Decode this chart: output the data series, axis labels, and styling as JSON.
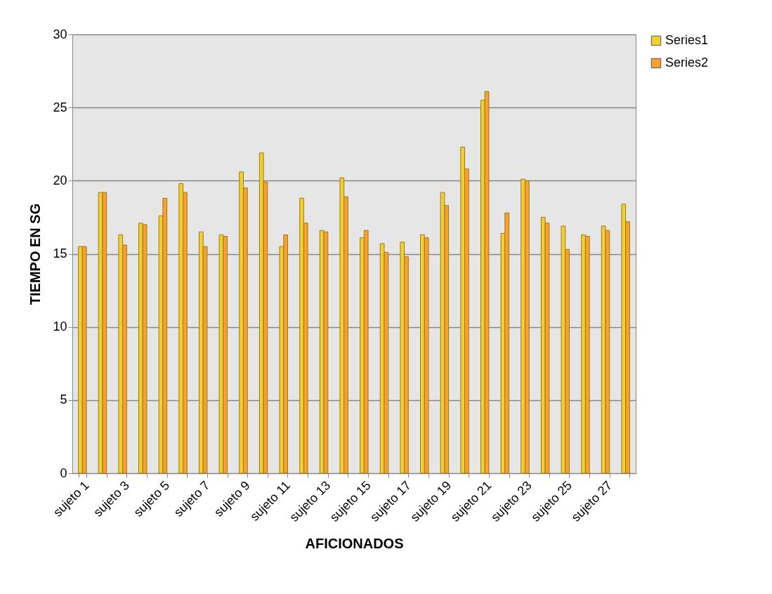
{
  "chart_data": {
    "type": "bar",
    "xlabel": "AFICIONADOS",
    "ylabel": "TIEMPO EN SG",
    "categories": [
      "sujeto 1",
      null,
      "sujeto 3",
      null,
      "sujeto 5",
      null,
      "sujeto 7",
      null,
      "sujeto 9",
      null,
      "sujeto 11",
      null,
      "sujeto 13",
      null,
      "sujeto 15",
      null,
      "sujeto 17",
      null,
      "sujeto 19",
      null,
      "sujeto 21",
      null,
      "sujeto 23",
      null,
      "sujeto 25",
      null,
      "sujeto 27",
      null
    ],
    "series": [
      {
        "name": "Series1",
        "color": "#f0d030",
        "values": [
          15.5,
          19.2,
          16.3,
          17.1,
          17.6,
          19.8,
          16.5,
          16.3,
          20.6,
          21.9,
          15.5,
          18.8,
          16.6,
          20.2,
          16.1,
          15.7,
          15.8,
          16.3,
          19.2,
          22.3,
          25.5,
          16.4,
          20.1,
          17.5,
          16.9,
          16.3,
          16.9,
          18.4
        ]
      },
      {
        "name": "Series2",
        "color": "#f8a030",
        "values": [
          15.5,
          19.2,
          15.6,
          17.0,
          18.8,
          19.2,
          15.5,
          16.2,
          19.5,
          19.9,
          16.3,
          17.1,
          16.5,
          18.9,
          16.6,
          15.1,
          14.8,
          16.1,
          18.3,
          20.8,
          26.1,
          17.8,
          20.0,
          17.1,
          15.3,
          16.2,
          16.6,
          17.2
        ]
      }
    ],
    "ylim": [
      0,
      30
    ],
    "yticks": [
      0,
      5,
      10,
      15,
      20,
      25,
      30
    ],
    "grid": "y",
    "legend": "right"
  }
}
